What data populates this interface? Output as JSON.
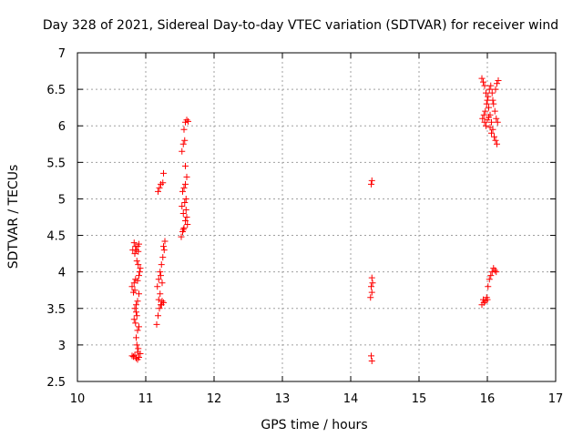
{
  "chart_data": {
    "type": "scatter",
    "title": "Day 328 of 2021, Sidereal Day-to-day VTEC variation (SDTVAR) for receiver wind",
    "xlabel": "GPS time / hours",
    "ylabel": "SDTVAR / TECUs",
    "xlim": [
      10,
      17
    ],
    "ylim": [
      2.5,
      7
    ],
    "x_ticks": [
      "10",
      "11",
      "12",
      "13",
      "14",
      "15",
      "16",
      "17"
    ],
    "y_ticks": [
      "2.5",
      "3",
      "3.5",
      "4",
      "4.5",
      "5",
      "5.5",
      "6",
      "6.5",
      "7"
    ],
    "grid": true,
    "marker": "+",
    "color": "#ff0000",
    "series": [
      {
        "name": "SDTVAR",
        "points": [
          [
            10.8,
            2.85
          ],
          [
            10.82,
            2.84
          ],
          [
            10.84,
            2.86
          ],
          [
            10.86,
            2.82
          ],
          [
            10.88,
            2.8
          ],
          [
            10.9,
            2.83
          ],
          [
            10.92,
            2.88
          ],
          [
            10.89,
            2.95
          ],
          [
            10.87,
            3.0
          ],
          [
            10.86,
            3.1
          ],
          [
            10.88,
            3.2
          ],
          [
            10.85,
            3.3
          ],
          [
            10.83,
            3.35
          ],
          [
            10.87,
            3.4
          ],
          [
            10.84,
            3.5
          ],
          [
            10.86,
            3.55
          ],
          [
            10.88,
            3.6
          ],
          [
            10.9,
            3.7
          ],
          [
            10.82,
            3.72
          ],
          [
            10.8,
            3.8
          ],
          [
            10.83,
            3.85
          ],
          [
            10.85,
            3.9
          ],
          [
            10.88,
            3.88
          ],
          [
            10.9,
            3.95
          ],
          [
            10.92,
            4.05
          ],
          [
            10.89,
            4.1
          ],
          [
            10.87,
            4.15
          ],
          [
            10.84,
            4.25
          ],
          [
            10.86,
            4.3
          ],
          [
            10.88,
            4.35
          ],
          [
            10.9,
            4.38
          ],
          [
            10.83,
            4.4
          ],
          [
            10.85,
            4.35
          ],
          [
            10.81,
            4.3
          ],
          [
            10.89,
            4.28
          ],
          [
            10.91,
            4.0
          ],
          [
            10.84,
            3.75
          ],
          [
            10.86,
            3.45
          ],
          [
            10.9,
            3.25
          ],
          [
            10.88,
            2.9
          ],
          [
            11.16,
            3.28
          ],
          [
            11.18,
            3.4
          ],
          [
            11.2,
            3.5
          ],
          [
            11.22,
            3.55
          ],
          [
            11.24,
            3.6
          ],
          [
            11.26,
            3.58
          ],
          [
            11.19,
            3.62
          ],
          [
            11.21,
            3.7
          ],
          [
            11.17,
            3.8
          ],
          [
            11.19,
            3.9
          ],
          [
            11.21,
            4.0
          ],
          [
            11.23,
            4.1
          ],
          [
            11.25,
            4.2
          ],
          [
            11.27,
            4.3
          ],
          [
            11.28,
            4.42
          ],
          [
            11.26,
            4.35
          ],
          [
            11.22,
            3.95
          ],
          [
            11.24,
            3.85
          ],
          [
            11.18,
            5.1
          ],
          [
            11.2,
            5.15
          ],
          [
            11.22,
            5.2
          ],
          [
            11.25,
            5.22
          ],
          [
            11.26,
            5.35
          ],
          [
            11.23,
            3.55
          ],
          [
            11.52,
            4.48
          ],
          [
            11.54,
            4.55
          ],
          [
            11.56,
            4.6
          ],
          [
            11.58,
            4.7
          ],
          [
            11.6,
            4.75
          ],
          [
            11.55,
            4.8
          ],
          [
            11.53,
            4.9
          ],
          [
            11.57,
            4.95
          ],
          [
            11.59,
            5.0
          ],
          [
            11.54,
            5.1
          ],
          [
            11.56,
            5.15
          ],
          [
            11.58,
            5.2
          ],
          [
            11.6,
            5.3
          ],
          [
            11.58,
            5.45
          ],
          [
            11.53,
            5.65
          ],
          [
            11.55,
            5.75
          ],
          [
            11.57,
            5.8
          ],
          [
            11.56,
            5.95
          ],
          [
            11.58,
            6.05
          ],
          [
            11.6,
            6.08
          ],
          [
            11.62,
            6.06
          ],
          [
            11.59,
            4.85
          ],
          [
            11.61,
            4.65
          ],
          [
            11.55,
            4.58
          ],
          [
            14.3,
            2.85
          ],
          [
            14.31,
            2.78
          ],
          [
            14.29,
            3.65
          ],
          [
            14.31,
            3.72
          ],
          [
            14.3,
            3.8
          ],
          [
            14.32,
            3.85
          ],
          [
            14.31,
            3.92
          ],
          [
            14.3,
            5.2
          ],
          [
            14.31,
            5.25
          ],
          [
            15.92,
            3.55
          ],
          [
            15.95,
            3.58
          ],
          [
            15.97,
            3.6
          ],
          [
            15.99,
            3.65
          ],
          [
            16.01,
            3.8
          ],
          [
            16.03,
            3.9
          ],
          [
            16.05,
            3.95
          ],
          [
            16.07,
            4.0
          ],
          [
            16.09,
            4.05
          ],
          [
            16.11,
            4.02
          ],
          [
            16.13,
            4.0
          ],
          [
            16.0,
            3.62
          ],
          [
            15.94,
            3.62
          ],
          [
            15.92,
            6.65
          ],
          [
            15.94,
            6.6
          ],
          [
            15.96,
            6.55
          ],
          [
            15.98,
            6.45
          ],
          [
            16.0,
            6.35
          ],
          [
            16.02,
            6.25
          ],
          [
            16.04,
            6.15
          ],
          [
            16.06,
            6.05
          ],
          [
            16.08,
            5.95
          ],
          [
            16.1,
            5.85
          ],
          [
            16.12,
            5.8
          ],
          [
            16.14,
            5.75
          ],
          [
            15.93,
            6.1
          ],
          [
            15.95,
            6.15
          ],
          [
            15.97,
            6.2
          ],
          [
            15.99,
            6.3
          ],
          [
            16.01,
            6.4
          ],
          [
            16.03,
            6.5
          ],
          [
            16.05,
            6.55
          ],
          [
            16.07,
            6.45
          ],
          [
            16.09,
            6.3
          ],
          [
            16.11,
            6.2
          ],
          [
            16.13,
            6.1
          ],
          [
            16.15,
            6.05
          ],
          [
            16.12,
            6.5
          ],
          [
            16.14,
            6.58
          ],
          [
            16.16,
            6.62
          ],
          [
            15.96,
            6.05
          ],
          [
            15.98,
            6.0
          ],
          [
            16.0,
            6.08
          ],
          [
            16.02,
            6.12
          ],
          [
            16.04,
            5.98
          ],
          [
            16.06,
            5.9
          ],
          [
            16.08,
            6.35
          ]
        ]
      }
    ]
  }
}
